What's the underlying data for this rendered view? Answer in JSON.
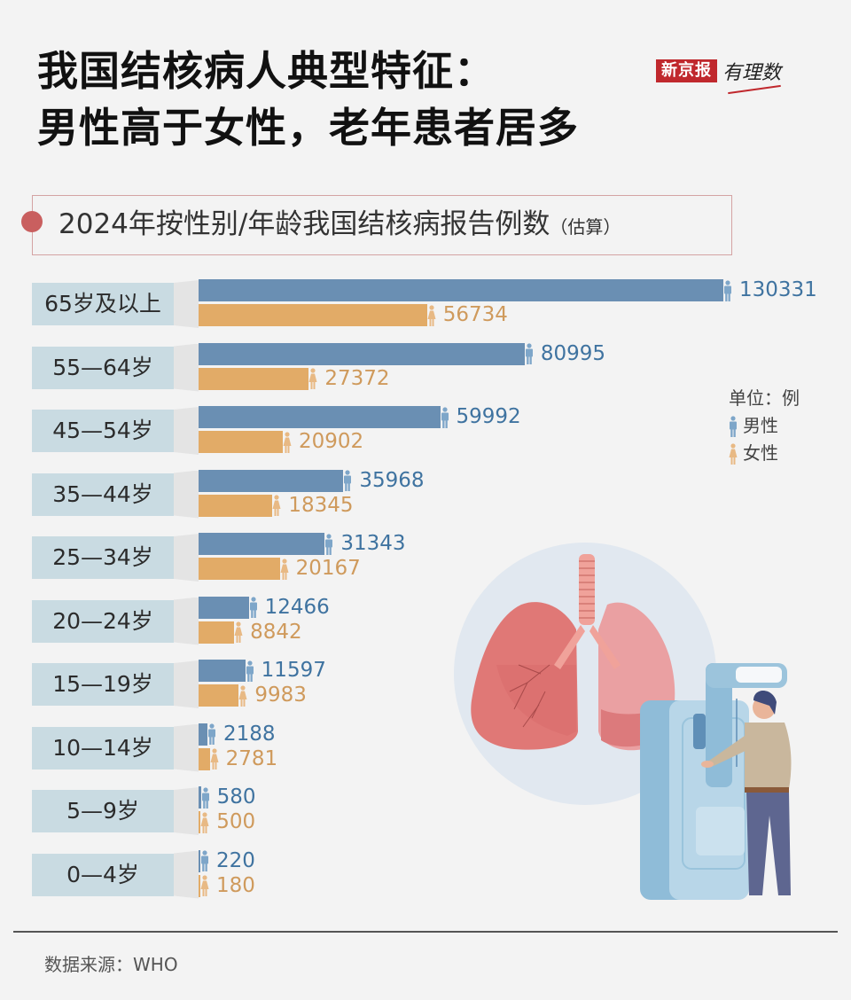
{
  "title": {
    "line1": "我国结核病人典型特征：",
    "line2": "男性高于女性，老年患者居多"
  },
  "brand": {
    "name": "新京报",
    "column": "有理数"
  },
  "subtitle": {
    "main": "2024年按性别/年龄我国结核病报告例数",
    "note": "（估算）"
  },
  "legend": {
    "unit": "单位：例",
    "male": "男性",
    "female": "女性"
  },
  "colors": {
    "male_bar": "#6a8fb3",
    "female_bar": "#e2ab67",
    "male_text": "#3f73a0",
    "female_text": "#cf9a5c",
    "label_bg": "#c9dbe2",
    "accent": "#c95f5f",
    "brand_red": "#c0282d"
  },
  "rows": [
    {
      "label": "65岁及以上",
      "male": "130331",
      "female": "56734"
    },
    {
      "label": "55—64岁",
      "male": "80995",
      "female": "27372"
    },
    {
      "label": "45—54岁",
      "male": "59992",
      "female": "20902"
    },
    {
      "label": "35—44岁",
      "male": "35968",
      "female": "18345"
    },
    {
      "label": "25—34岁",
      "male": "31343",
      "female": "20167"
    },
    {
      "label": "20—24岁",
      "male": "12466",
      "female": "8842"
    },
    {
      "label": "15—19岁",
      "male": "11597",
      "female": "9983"
    },
    {
      "label": "10—14岁",
      "male": "2188",
      "female": "2781"
    },
    {
      "label": "5—9岁",
      "male": "580",
      "female": "500"
    },
    {
      "label": "0—4岁",
      "male": "220",
      "female": "180"
    }
  ],
  "source": "数据来源：WHO",
  "chart_data": {
    "type": "bar",
    "orientation": "horizontal",
    "title": "我国结核病人典型特征：男性高于女性，老年患者居多",
    "subtitle": "2024年按性别/年龄我国结核病报告例数（估算）",
    "xlabel": "",
    "ylabel": "",
    "unit": "例",
    "categories": [
      "65岁及以上",
      "55—64岁",
      "45—54岁",
      "35—44岁",
      "25—34岁",
      "20—24岁",
      "15—19岁",
      "10—14岁",
      "5—9岁",
      "0—4岁"
    ],
    "series": [
      {
        "name": "男性",
        "color": "#6a8fb3",
        "values": [
          130331,
          80995,
          59992,
          35968,
          31343,
          12466,
          11597,
          2188,
          580,
          220
        ]
      },
      {
        "name": "女性",
        "color": "#e2ab67",
        "values": [
          56734,
          27372,
          20902,
          18345,
          20167,
          8842,
          9983,
          2781,
          500,
          180
        ]
      }
    ],
    "legend_position": "right",
    "grid": false,
    "data_labels": true,
    "source": "数据来源：WHO"
  }
}
